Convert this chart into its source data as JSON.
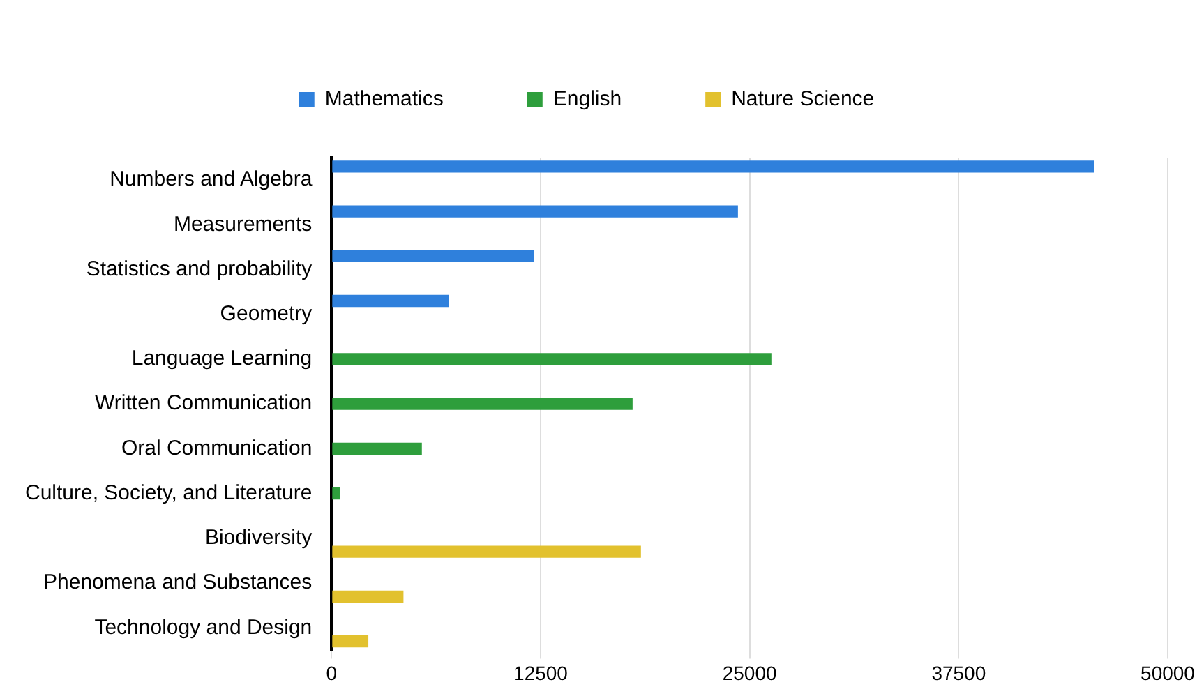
{
  "chart_data": {
    "type": "bar",
    "orientation": "horizontal",
    "categories": [
      "Numbers and Algebra",
      "Measurements",
      "Statistics and probability",
      "Geometry",
      "Language Learning",
      "Written Communication",
      "Oral Communication",
      "Culture, Society, and Literature",
      "Biodiversity",
      "Phenomena and Substances",
      "Technology and Design"
    ],
    "series": [
      {
        "name": "Mathematics",
        "color": "#2f80dc",
        "values": [
          45600,
          24300,
          12100,
          7000,
          null,
          null,
          null,
          null,
          null,
          null,
          null
        ]
      },
      {
        "name": "English",
        "color": "#2e9e3c",
        "values": [
          null,
          null,
          null,
          null,
          26300,
          18000,
          5400,
          500,
          null,
          null,
          null
        ]
      },
      {
        "name": "Nature Science",
        "color": "#e2c12e",
        "values": [
          null,
          null,
          null,
          null,
          null,
          null,
          null,
          null,
          18500,
          4300,
          2200
        ]
      }
    ],
    "xlim": [
      0,
      50000
    ],
    "xticks": [
      0,
      12500,
      25000,
      37500,
      50000
    ],
    "grid": "x",
    "legend": "top"
  }
}
